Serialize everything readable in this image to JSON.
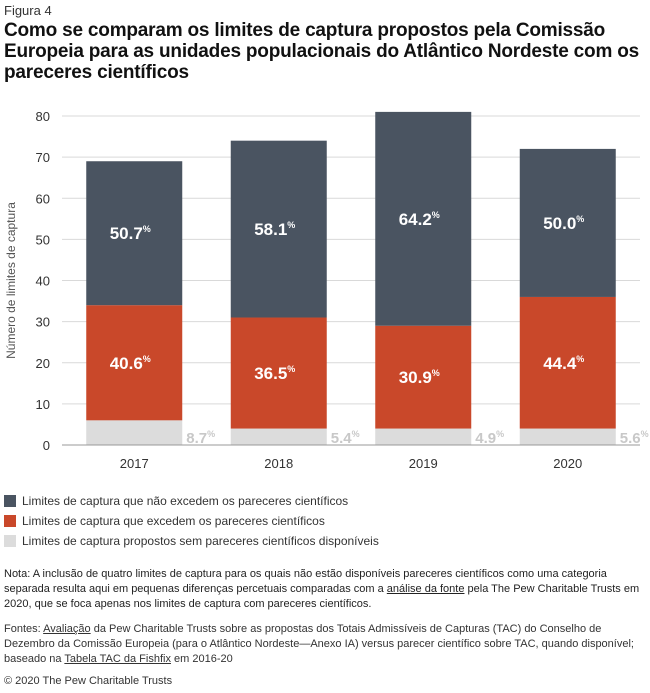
{
  "figure_label": "Figura 4",
  "title": "Como se comparam os limites de captura propostos pela Comissão Europeia para as unidades populacionais do Atlântico Nordeste com os pareceres científicos",
  "colors": {
    "not_exceeding": "#4a5461",
    "exceeding": "#c9482a",
    "no_advice": "#dcdcdc",
    "no_advice_label": "#c8c8c8",
    "label_white": "#ffffff",
    "axis_text": "#333333",
    "grid": "#d9d9d9"
  },
  "chart_data": {
    "type": "bar",
    "stacked": true,
    "categories": [
      "2017",
      "2018",
      "2019",
      "2020"
    ],
    "ylabel": "Número de limites de captura",
    "ylim": [
      0,
      80
    ],
    "yticks": [
      0,
      10,
      20,
      30,
      40,
      50,
      60,
      70,
      80
    ],
    "grid": true,
    "legend_position": "bottom-left",
    "series": [
      {
        "name": "Limites de captura propostos sem pareceres científicos disponíveis",
        "key": "no_advice",
        "values": [
          6,
          4,
          4,
          4
        ],
        "labels": [
          "8.7",
          "5.4",
          "4.9",
          "5.6"
        ]
      },
      {
        "name": "Limites de captura que excedem os pareceres científicos",
        "key": "exceeding",
        "values": [
          28,
          27,
          25,
          32
        ],
        "labels": [
          "40.6",
          "36.5",
          "30.9",
          "44.4"
        ]
      },
      {
        "name": "Limites de captura que não excedem os pareceres científicos",
        "key": "not_exceeding",
        "values": [
          35,
          43,
          52,
          36
        ],
        "labels": [
          "50.7",
          "58.1",
          "64.2",
          "50.0"
        ]
      }
    ],
    "percent_symbol": "%"
  },
  "legend": [
    {
      "label": "Limites de captura que não excedem os pareceres científicos",
      "color": "#4a5461"
    },
    {
      "label": "Limites de captura que excedem os pareceres científicos",
      "color": "#c9482a"
    },
    {
      "label": "Limites de captura propostos sem pareceres científicos disponíveis",
      "color": "#dcdcdc"
    }
  ],
  "note": {
    "before_link": "Nota: A inclusão de quatro limites de captura para os quais não estão disponíveis pareceres científicos como uma categoria separada resulta aqui em pequenas diferenças percetuais comparadas com a ",
    "link": "análise da fonte",
    "after_link": " pela The Pew Charitable Trusts em 2020, que se foca apenas nos limites de captura com pareceres científicos."
  },
  "sources": {
    "prefix": "Fontes: ",
    "link1": "Avaliação",
    "middle": " da Pew Charitable Trusts sobre as propostas dos Totais Admissíveis de Capturas (TAC) do Conselho de Dezembro da Comissão Europeia (para o Atlântico Nordeste—Anexo IA) versus parecer científico sobre TAC, quando disponível; baseado na ",
    "link2": "Tabela TAC da Fishfix",
    "suffix": " em 2016-20"
  },
  "copyright": "© 2020 The Pew Charitable Trusts"
}
